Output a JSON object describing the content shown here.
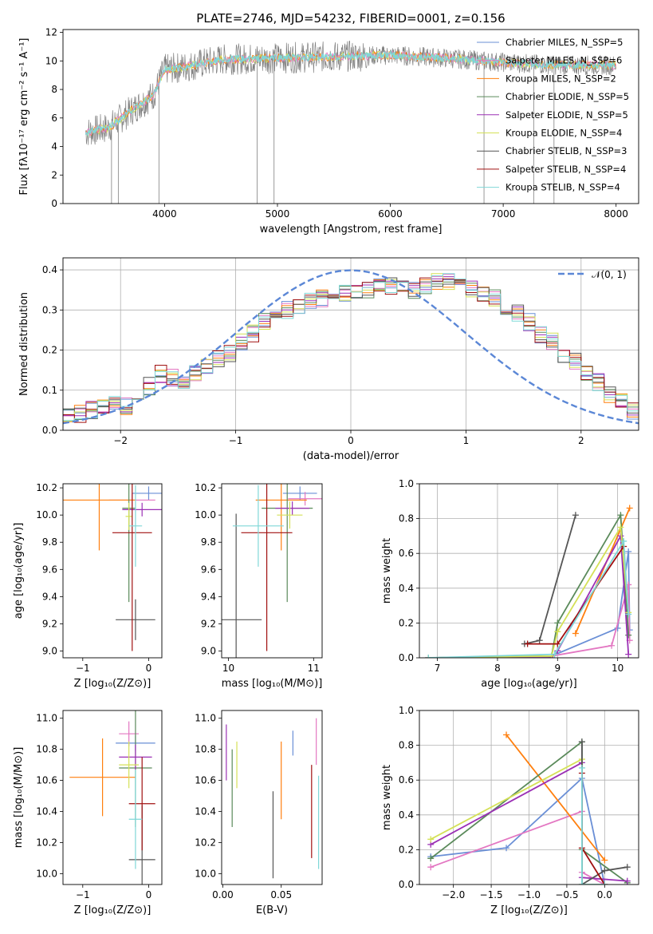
{
  "page_title": "PLATE=2746, MJD=54232, FIBERID=0001, z=0.156",
  "model_colors": [
    "#6a8fd6",
    "#e377c2",
    "#ff7f0e",
    "#5a8a5a",
    "#9b30b5",
    "#d4e157",
    "#555555",
    "#a01010",
    "#7fd7d7"
  ],
  "chart_data": [
    {
      "type": "line",
      "panel": "spectrum",
      "title": "PLATE=2746, MJD=54232, FIBERID=0001, z=0.156",
      "xlabel": "wavelength [Angstrom, rest frame]",
      "ylabel": "Flux [fλ10⁻¹⁷ erg cm⁻² s⁻¹ A⁻¹]",
      "xlim": [
        3100,
        8200
      ],
      "ylim": [
        0,
        12.2
      ],
      "xticks": [
        "4000",
        "5000",
        "6000",
        "7000",
        "8000"
      ],
      "yticks": [
        "0",
        "2",
        "4",
        "6",
        "8",
        "10",
        "12"
      ],
      "grid": false,
      "legend_position": "right",
      "data_color": "#808080",
      "model_color": "#7fd7d7",
      "continuum": [
        [
          3300,
          5.0
        ],
        [
          3500,
          5.3
        ],
        [
          3700,
          6.5
        ],
        [
          3900,
          7.6
        ],
        [
          4000,
          9.4
        ],
        [
          4200,
          9.6
        ],
        [
          4500,
          10.1
        ],
        [
          5000,
          10.2
        ],
        [
          5500,
          10.3
        ],
        [
          6000,
          10.4
        ],
        [
          6500,
          10.2
        ],
        [
          7000,
          9.9
        ],
        [
          7500,
          9.7
        ],
        [
          8000,
          9.7
        ]
      ],
      "absorption_lines": [
        [
          3530,
          0
        ],
        [
          3590,
          0
        ],
        [
          3950,
          0
        ],
        [
          4820,
          0
        ],
        [
          4970,
          0
        ],
        [
          6830,
          0
        ],
        [
          7270,
          0
        ],
        [
          7450,
          0
        ]
      ],
      "legend": [
        "Chabrier MILES, N_SSP=5",
        "Salpeter MILES, N_SSP=6",
        "Kroupa MILES, N_SSP=2",
        "Chabrier ELODIE, N_SSP=5",
        "Salpeter ELODIE, N_SSP=5",
        "Kroupa ELODIE, N_SSP=4",
        "Chabrier STELIB, N_SSP=3",
        "Salpeter STELIB, N_SSP=4",
        "Kroupa STELIB, N_SSP=4"
      ],
      "series": [
        {
          "name": "Chabrier MILES, N_SSP=5"
        },
        {
          "name": "Salpeter MILES, N_SSP=6"
        },
        {
          "name": "Kroupa MILES, N_SSP=2"
        },
        {
          "name": "Chabrier ELODIE, N_SSP=5"
        },
        {
          "name": "Salpeter ELODIE, N_SSP=5"
        },
        {
          "name": "Kroupa ELODIE, N_SSP=4"
        },
        {
          "name": "Chabrier STELIB, N_SSP=3"
        },
        {
          "name": "Salpeter STELIB, N_SSP=4"
        },
        {
          "name": "Kroupa STELIB, N_SSP=4"
        }
      ]
    },
    {
      "type": "bar",
      "panel": "residuals",
      "xlabel": "(data-model)/error",
      "ylabel": "Normed distribution",
      "xlim": [
        -2.5,
        2.5
      ],
      "ylim": [
        0,
        0.43
      ],
      "xticks": [
        "−2",
        "−1",
        "0",
        "1",
        "2"
      ],
      "yticks": [
        "0.0",
        "0.1",
        "0.2",
        "0.3",
        "0.4"
      ],
      "grid": true,
      "legend_position": "top-right",
      "gaussian_label": "𝒩(0, 1)",
      "gaussian_color": "#5b87d6",
      "bin_width": 0.1,
      "hist_values": [
        0.04,
        0.04,
        0.05,
        0.06,
        0.07,
        0.06,
        0.09,
        0.11,
        0.14,
        0.13,
        0.12,
        0.14,
        0.16,
        0.18,
        0.19,
        0.22,
        0.24,
        0.27,
        0.29,
        0.3,
        0.31,
        0.32,
        0.33,
        0.34,
        0.34,
        0.35,
        0.35,
        0.36,
        0.36,
        0.36,
        0.35,
        0.36,
        0.37,
        0.37,
        0.36,
        0.35,
        0.34,
        0.33,
        0.31,
        0.29,
        0.27,
        0.24,
        0.22,
        0.19,
        0.17,
        0.14,
        0.12,
        0.09,
        0.07,
        0.05
      ]
    },
    {
      "type": "scatter",
      "panel": "age-vs-Z",
      "xlabel": "Z [log₁₀(Z/Z⊙)]",
      "ylabel": "age  [log₁₀(age/yr)]",
      "xlim": [
        -1.3,
        0.2
      ],
      "ylim": [
        8.95,
        10.23
      ],
      "xticks": [
        "−1",
        "0"
      ],
      "yticks": [
        "9.0",
        "9.2",
        "9.4",
        "9.6",
        "9.8",
        "10.0",
        "10.2"
      ],
      "points": [
        [
          0.0,
          10.16,
          0.25,
          0.05
        ],
        [
          -0.25,
          10.11,
          0.35,
          0.05
        ],
        [
          -0.75,
          10.11,
          0.55,
          0.37
        ],
        [
          -0.3,
          10.05,
          0.1,
          0.69
        ],
        [
          -0.1,
          10.04,
          0.3,
          0.05
        ],
        [
          -0.3,
          9.99,
          0.05,
          0.1
        ],
        [
          -0.2,
          9.23,
          0.3,
          0.15
        ],
        [
          -0.25,
          9.87,
          0.3,
          0.87
        ],
        [
          -0.2,
          9.92,
          0.1,
          0.3
        ]
      ]
    },
    {
      "type": "scatter",
      "panel": "age-vs-mass",
      "xlabel": "mass [log₁₀(M/M⊙)]",
      "ylabel": "",
      "xlim": [
        9.92,
        11.1
      ],
      "ylim": [
        8.95,
        10.23
      ],
      "xticks": [
        "10",
        "11"
      ],
      "yticks": [
        "9.0",
        "9.2",
        "9.4",
        "9.6",
        "9.8",
        "10.0",
        "10.2"
      ],
      "points": [
        [
          10.84,
          10.16,
          0.2,
          0.05
        ],
        [
          10.9,
          10.12,
          0.2,
          0.05
        ],
        [
          10.62,
          10.11,
          0.3,
          0.37
        ],
        [
          10.69,
          10.05,
          0.3,
          0.69
        ],
        [
          10.75,
          10.05,
          0.2,
          0.05
        ],
        [
          10.72,
          10.0,
          0.15,
          0.1
        ],
        [
          10.09,
          9.23,
          0.3,
          0.78
        ],
        [
          10.45,
          9.87,
          0.3,
          0.87
        ],
        [
          10.35,
          9.92,
          0.3,
          0.3
        ]
      ]
    },
    {
      "type": "line",
      "panel": "mass-weight-vs-age",
      "xlabel": "age  [log₁₀(age/yr)]",
      "ylabel": "mass weight",
      "xlim": [
        6.7,
        10.35
      ],
      "ylim": [
        0,
        1.0
      ],
      "xticks": [
        "7",
        "8",
        "9",
        "10"
      ],
      "yticks": [
        "0.0",
        "0.2",
        "0.4",
        "0.6",
        "0.8",
        "1.0"
      ],
      "grid": true,
      "series": [
        {
          "x": [
            6.85,
            8.9,
            10.0,
            10.18,
            10.2
          ],
          "y": [
            0.0,
            0.01,
            0.17,
            0.61,
            0.16
          ]
        },
        {
          "x": [
            6.85,
            8.9,
            9.9,
            10.18,
            10.2
          ],
          "y": [
            0.0,
            0.01,
            0.07,
            0.42,
            0.1
          ]
        },
        {
          "x": [
            9.3,
            10.2
          ],
          "y": [
            0.14,
            0.86
          ]
        },
        {
          "x": [
            6.85,
            8.9,
            9.0,
            10.05,
            10.18
          ],
          "y": [
            0.0,
            0.01,
            0.2,
            0.82,
            0.13
          ]
        },
        {
          "x": [
            6.85,
            8.9,
            9.0,
            10.05,
            10.18
          ],
          "y": [
            0.0,
            0.0,
            0.04,
            0.7,
            0.02
          ]
        },
        {
          "x": [
            6.85,
            8.9,
            9.0,
            10.05,
            10.18
          ],
          "y": [
            0.0,
            0.01,
            0.15,
            0.75,
            0.26
          ]
        },
        {
          "x": [
            8.45,
            8.7,
            9.3
          ],
          "y": [
            0.08,
            0.1,
            0.82
          ]
        },
        {
          "x": [
            8.5,
            9.0,
            10.1
          ],
          "y": [
            0.08,
            0.08,
            0.64
          ]
        },
        {
          "x": [
            6.85,
            8.95,
            10.1,
            10.18
          ],
          "y": [
            0.0,
            0.02,
            0.67,
            0.25
          ]
        }
      ]
    },
    {
      "type": "scatter",
      "panel": "mass-vs-Z",
      "xlabel": "Z [log₁₀(Z/Z⊙)]",
      "ylabel": "mass [log₁₀(M/M⊙)]",
      "xlim": [
        -1.3,
        0.2
      ],
      "ylim": [
        9.93,
        11.05
      ],
      "xticks": [
        "−1",
        "0"
      ],
      "yticks": [
        "10.0",
        "10.2",
        "10.4",
        "10.6",
        "10.8",
        "11.0"
      ],
      "points": [
        [
          -0.2,
          10.84,
          0.3,
          0.05
        ],
        [
          -0.3,
          10.9,
          0.15,
          0.08
        ],
        [
          -0.7,
          10.62,
          0.5,
          0.25
        ],
        [
          -0.2,
          10.68,
          0.25,
          0.38
        ],
        [
          -0.2,
          10.75,
          0.25,
          0.08
        ],
        [
          -0.3,
          10.7,
          0.15,
          0.15
        ],
        [
          -0.1,
          10.09,
          0.2,
          0.35
        ],
        [
          -0.1,
          10.45,
          0.2,
          0.3
        ],
        [
          -0.2,
          10.35,
          0.1,
          0.32
        ]
      ]
    },
    {
      "type": "scatter",
      "panel": "mass-vs-EBV",
      "xlabel": "E(B-V)",
      "ylabel": "",
      "xlim": [
        -0.001,
        0.085
      ],
      "ylim": [
        9.93,
        11.05
      ],
      "xticks": [
        "0.00",
        "0.05"
      ],
      "yticks": [
        "10.0",
        "10.2",
        "10.4",
        "10.6",
        "10.8",
        "11.0"
      ],
      "points": [
        [
          0.06,
          10.84,
          0,
          0.08
        ],
        [
          0.08,
          10.85,
          0,
          0.15
        ],
        [
          0.05,
          10.6,
          0,
          0.25
        ],
        [
          0.008,
          10.55,
          0,
          0.25
        ],
        [
          0.003,
          10.78,
          0,
          0.18
        ],
        [
          0.012,
          10.7,
          0,
          0.15
        ],
        [
          0.043,
          10.25,
          0,
          0.28
        ],
        [
          0.076,
          10.4,
          0,
          0.3
        ],
        [
          0.082,
          10.33,
          0,
          0.3
        ]
      ]
    },
    {
      "type": "line",
      "panel": "mass-weight-vs-Z",
      "xlabel": "Z [log₁₀(Z/Z⊙)]",
      "ylabel": "mass weight",
      "xlim": [
        -2.45,
        0.45
      ],
      "ylim": [
        0,
        1.0
      ],
      "xticks": [
        "−2.0",
        "−1.5",
        "−1.0",
        "−0.5",
        "0.0"
      ],
      "yticks": [
        "0.0",
        "0.2",
        "0.4",
        "0.6",
        "0.8",
        "1.0"
      ],
      "grid": true,
      "series": [
        {
          "x": [
            -2.3,
            -1.3,
            -0.3,
            0.0
          ],
          "y": [
            0.16,
            0.21,
            0.61,
            0.0
          ]
        },
        {
          "x": [
            -2.3,
            -0.3,
            -0.3,
            0.0
          ],
          "y": [
            0.1,
            0.42,
            0.07,
            0.0
          ]
        },
        {
          "x": [
            -1.3,
            0.0
          ],
          "y": [
            0.86,
            0.14
          ]
        },
        {
          "x": [
            -2.3,
            -0.3,
            -0.3,
            0.3
          ],
          "y": [
            0.15,
            0.82,
            0.2,
            0.01
          ]
        },
        {
          "x": [
            -2.3,
            -0.3,
            -0.3,
            0.3
          ],
          "y": [
            0.23,
            0.7,
            0.04,
            0.02
          ]
        },
        {
          "x": [
            -2.3,
            -0.3,
            -0.3,
            0.0
          ],
          "y": [
            0.26,
            0.72,
            0.0,
            0.0
          ]
        },
        {
          "x": [
            -0.3,
            -0.3,
            0.0,
            0.3
          ],
          "y": [
            0.82,
            0.0,
            0.08,
            0.1
          ]
        },
        {
          "x": [
            -0.3,
            -0.3,
            0.0
          ],
          "y": [
            0.64,
            0.21,
            0.0
          ]
        },
        {
          "x": [
            -0.3,
            -0.3,
            0.0
          ],
          "y": [
            0.67,
            0.0,
            0.0
          ]
        }
      ]
    }
  ]
}
